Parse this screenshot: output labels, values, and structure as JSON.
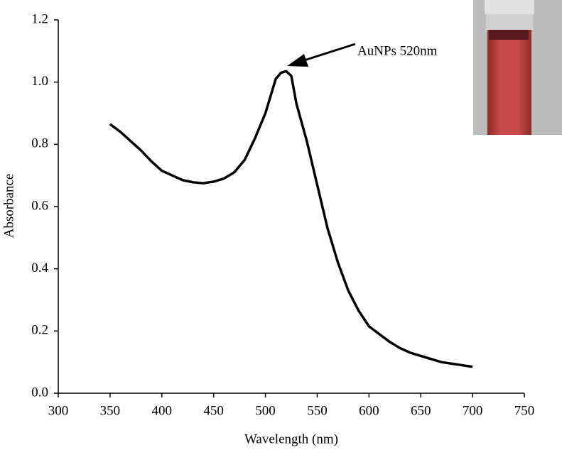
{
  "chart_data": {
    "type": "line",
    "x_label": "Wavelength (nm)",
    "y_label": "Absorbance",
    "annotation": "AuNPs 520nm",
    "xlim": [
      300,
      750
    ],
    "xticks": [
      300,
      350,
      400,
      450,
      500,
      550,
      600,
      650,
      700,
      750
    ],
    "ylim": [
      0,
      1.2
    ],
    "yticks": [
      {
        "value": 0,
        "label": "0.0"
      },
      0.2,
      0.4,
      0.6,
      0.8,
      {
        "value": 1,
        "label": "1.0"
      },
      1.2
    ],
    "series": [
      {
        "color": "#000000",
        "x": [
          350,
          360,
          370,
          380,
          390,
          400,
          410,
          420,
          430,
          440,
          450,
          460,
          470,
          480,
          490,
          500,
          510,
          515,
          520,
          525,
          530,
          540,
          550,
          560,
          570,
          580,
          590,
          600,
          610,
          620,
          630,
          640,
          650,
          660,
          670,
          680,
          690,
          700
        ],
        "values": [
          0.865,
          0.84,
          0.81,
          0.78,
          0.745,
          0.715,
          0.7,
          0.685,
          0.678,
          0.675,
          0.68,
          0.69,
          0.71,
          0.75,
          0.82,
          0.9,
          1.01,
          1.03,
          1.035,
          1.02,
          0.93,
          0.81,
          0.67,
          0.53,
          0.42,
          0.33,
          0.265,
          0.215,
          0.19,
          0.165,
          0.145,
          0.13,
          0.12,
          0.11,
          0.1,
          0.095,
          0.09,
          0.085
        ]
      }
    ]
  }
}
